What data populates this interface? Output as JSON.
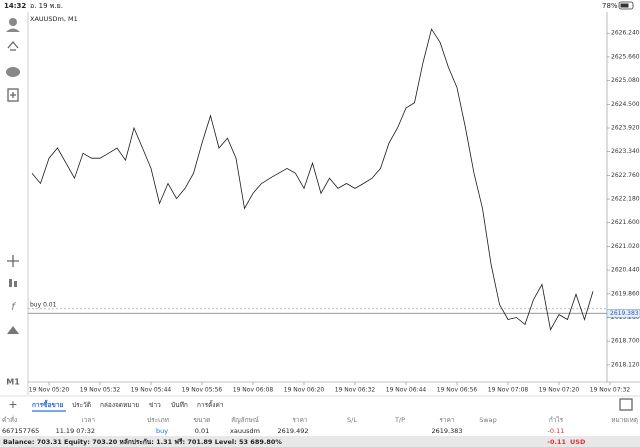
{
  "status_bar": {
    "time": "14:32",
    "date": "อ. 19 พ.ย.",
    "battery": "78%"
  },
  "chart_data": {
    "type": "line",
    "title": "XAUUSDm, M1",
    "color": "#1a1a1a",
    "categories": [
      null,
      null,
      "19 Nov 05:20",
      null,
      null,
      null,
      null,
      null,
      "19 Nov 05:32",
      null,
      null,
      null,
      null,
      null,
      "19 Nov 05:44",
      null,
      null,
      null,
      null,
      null,
      "19 Nov 05:56",
      null,
      null,
      null,
      null,
      null,
      "19 Nov 06:08",
      null,
      null,
      null,
      null,
      null,
      "19 Nov 06:20",
      null,
      null,
      null,
      null,
      null,
      "19 Nov 06:32",
      null,
      null,
      null,
      null,
      null,
      "19 Nov 06:44",
      null,
      null,
      null,
      null,
      null,
      "19 Nov 06:56",
      null,
      null,
      null,
      null,
      null,
      "19 Nov 07:08",
      null,
      null,
      null,
      null,
      null,
      "19 Nov 07:20",
      null,
      null,
      null,
      null,
      null,
      "19 Nov 07:32"
    ],
    "values": [
      2622.81,
      2622.56,
      2623.18,
      2623.43,
      2623.06,
      2622.69,
      2623.3,
      2623.18,
      2623.18,
      2623.3,
      2623.43,
      2623.13,
      2623.92,
      2623.43,
      2622.93,
      2622.07,
      2622.56,
      2622.19,
      2622.44,
      2622.81,
      2623.55,
      2624.22,
      2623.43,
      2623.67,
      2623.18,
      2621.95,
      2622.32,
      2622.56,
      2622.69,
      2622.81,
      2622.93,
      2622.81,
      2622.44,
      2623.06,
      2622.32,
      2622.69,
      2622.44,
      2622.56,
      2622.44,
      2622.56,
      2622.69,
      2622.93,
      2623.55,
      2623.92,
      2624.41,
      2624.54,
      2625.52,
      2626.34,
      2626.02,
      2625.4,
      2624.91,
      2623.92,
      2622.81,
      2621.95,
      2620.59,
      2619.6,
      2619.23,
      2619.28,
      2619.11,
      2619.72,
      2620.09,
      2618.98,
      2619.35,
      2619.23,
      2619.85,
      2619.23,
      2619.92,
      null,
      null
    ],
    "ylim": [
      2617.7,
      2626.76
    ],
    "yticks": [
      {
        "value": 2618.12,
        "label": "2618.120"
      },
      {
        "value": 2618.7,
        "label": "2618.700"
      },
      {
        "value": 2619.28,
        "label": "2619.280"
      },
      {
        "value": 2619.86,
        "label": "2619.860"
      },
      {
        "value": 2620.44,
        "label": "2620.440"
      },
      {
        "value": 2621.02,
        "label": "2621.020"
      },
      {
        "value": 2621.6,
        "label": "2621.600"
      },
      {
        "value": 2622.18,
        "label": "2622.180"
      },
      {
        "value": 2622.76,
        "label": "2622.760"
      },
      {
        "value": 2623.34,
        "label": "2623.340"
      },
      {
        "value": 2623.92,
        "label": "2623.920"
      },
      {
        "value": 2624.5,
        "label": "2624.500"
      },
      {
        "value": 2625.08,
        "label": "2625.080"
      },
      {
        "value": 2625.66,
        "label": "2625.660"
      },
      {
        "value": 2626.24,
        "label": "2626.240"
      }
    ],
    "position_line": {
      "label": "buy 0.01",
      "value": 2619.492
    },
    "bid_line": {
      "value": 2619.383,
      "label": "2619.383"
    }
  },
  "timeframe": "M1",
  "tabs": [
    "การซื้อขาย",
    "ประวัติ",
    "กล่องจดหมาย",
    "ข่าว",
    "บันทึก",
    "การตั้งค่า"
  ],
  "table": {
    "headers": [
      "คำสั่ง",
      "เวลา",
      "ประเภท",
      "ขนาด",
      "สัญลักษณ์",
      "ราคา",
      "S/L",
      "T/P",
      "ราคา",
      "Swap",
      "กำไร",
      "หมายเหตุ"
    ],
    "row": {
      "order": "667157765",
      "time": "11.19 07:32",
      "type": "buy",
      "volume": "0.01",
      "symbol": "xauusdm",
      "open_price": "2619.492",
      "current_price": "2619.383",
      "profit": "-0.11"
    }
  },
  "footer": {
    "summary": "Balance: 703.31 Equity: 703.20 หลักประกัน: 1.31 ฟรี: 701.89 Level: 53 689.80%",
    "total": "-0.11",
    "currency": "USD"
  }
}
